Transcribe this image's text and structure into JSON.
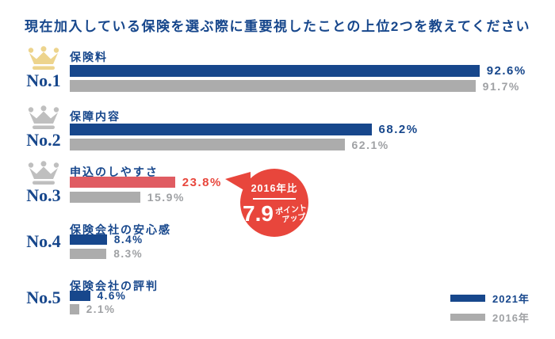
{
  "title": "現在加入している保険を選ぶ際に重要視したことの上位2つを教えてください",
  "colors": {
    "navy": "#17478C",
    "bar_gray": "#ACACAC",
    "text_gray": "#9FA1A4",
    "red_bar": "#E05C62",
    "red_accent": "#E8463C",
    "crown_gold": "#EDD48D",
    "crown_silver": "#BFBFBF",
    "background": "#FFFFFF"
  },
  "rows": [
    {
      "rank": "No.1",
      "category": "保険料",
      "crown": "gold",
      "y2021": 92.6,
      "y2016": 91.7,
      "label_2021": "92.6%",
      "label_2016": "91.7%"
    },
    {
      "rank": "No.2",
      "category": "保障内容",
      "crown": "silver",
      "y2021": 68.2,
      "y2016": 62.1,
      "label_2021": "68.2%",
      "label_2016": "62.1%"
    },
    {
      "rank": "No.3",
      "category": "申込のしやすさ",
      "crown": "silver",
      "y2021": 23.8,
      "y2016": 15.9,
      "label_2021": "23.8%",
      "label_2016": "15.9%",
      "highlight": true
    },
    {
      "rank": "No.4",
      "category": "保険会社の安心感",
      "crown": null,
      "y2021": 8.4,
      "y2016": 8.3,
      "label_2021": "8.4%",
      "label_2016": "8.3%"
    },
    {
      "rank": "No.5",
      "category": "保険会社の評判",
      "crown": null,
      "y2021": 4.6,
      "y2016": 2.1,
      "label_2021": "4.6%",
      "label_2016": "2.1%"
    }
  ],
  "bubble": {
    "compare_label": "2016年比",
    "value": "7.9",
    "unit_line1": "ポイント",
    "unit_line2": "アップ"
  },
  "legend": [
    {
      "label": "2021年",
      "color": "#17478C"
    },
    {
      "label": "2016年",
      "color": "#ACACAC"
    }
  ],
  "chart_data": {
    "type": "bar",
    "orientation": "horizontal",
    "title": "現在加入している保険を選ぶ際に重要視したことの上位2つを教えてください",
    "categories": [
      "保険料",
      "保障内容",
      "申込のしやすさ",
      "保険会社の安心感",
      "保険会社の評判"
    ],
    "series": [
      {
        "name": "2021年",
        "values": [
          92.6,
          68.2,
          23.8,
          8.4,
          4.6
        ]
      },
      {
        "name": "2016年",
        "values": [
          91.7,
          62.1,
          15.9,
          8.3,
          2.1
        ]
      }
    ],
    "xlim": [
      0,
      100
    ],
    "unit": "%",
    "grid": false,
    "legend_position": "bottom-right",
    "annotations": [
      {
        "target_category": "申込のしやすさ",
        "target_series": "2021年",
        "text": "2016年比 7.9ポイントアップ"
      }
    ],
    "ranks": [
      "No.1",
      "No.2",
      "No.3",
      "No.4",
      "No.5"
    ]
  }
}
